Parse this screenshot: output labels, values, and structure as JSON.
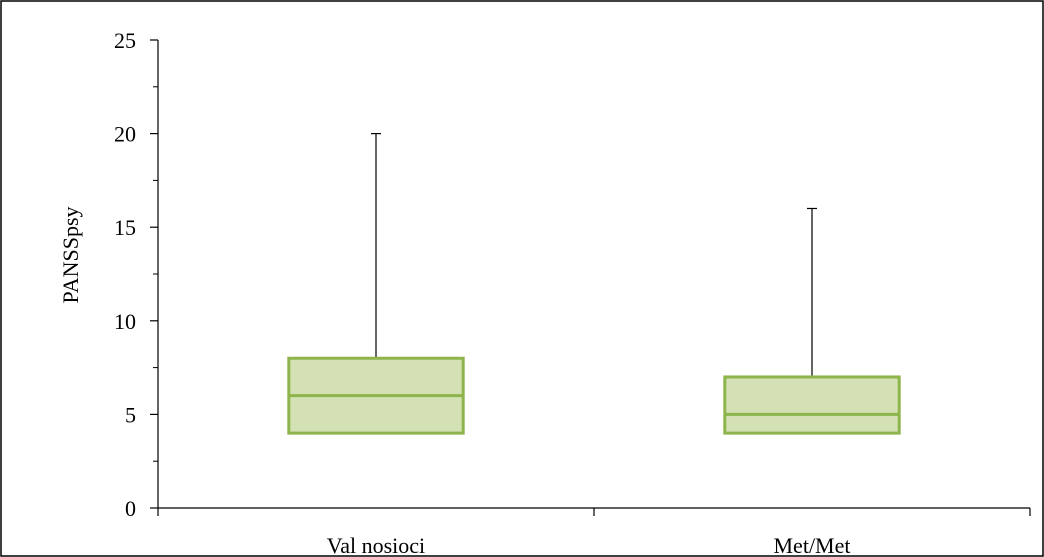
{
  "chart_data": {
    "type": "box",
    "title": "",
    "xlabel": "",
    "ylabel": "PANSSpsy",
    "ylim": [
      0,
      25
    ],
    "yticks": [
      "0",
      "5",
      "10",
      "15",
      "20",
      "25"
    ],
    "grid": false,
    "legend": "none",
    "categories": [
      "Val nosioci",
      "Met/Met"
    ],
    "boxes": [
      {
        "category": "Val nosioci",
        "min": 4,
        "q1": 4,
        "median": 6,
        "q3": 8,
        "max": 20
      },
      {
        "category": "Met/Met",
        "min": 4,
        "q1": 4,
        "median": 5,
        "q3": 7,
        "max": 16
      }
    ],
    "colors": {
      "box_fill": "#d3e1b5",
      "box_stroke": "#8db54b",
      "axis": "#000000",
      "whisker": "#000000",
      "frame": "#000000"
    }
  }
}
